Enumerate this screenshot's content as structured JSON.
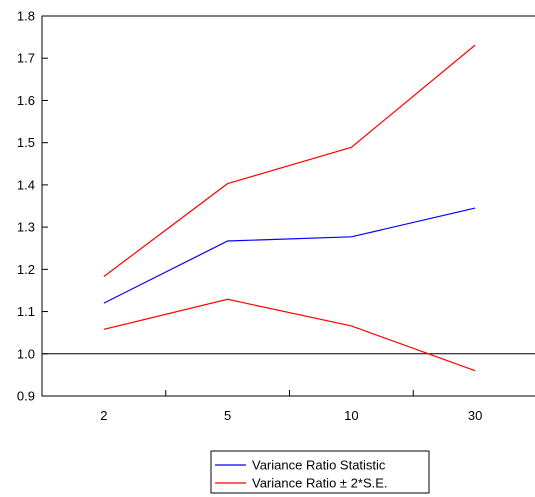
{
  "chart_data": {
    "type": "line",
    "categories": [
      "2",
      "5",
      "10",
      "30"
    ],
    "series": [
      {
        "name": "Variance Ratio Statistic",
        "color": "#0000ff",
        "values": [
          1.12,
          1.267,
          1.277,
          1.345
        ]
      },
      {
        "name": "Variance Ratio ± 2*S.E.",
        "color": "#ff0000",
        "values": [
          1.183,
          1.403,
          1.489,
          1.731
        ]
      },
      {
        "name": "",
        "color": "#ff0000",
        "values": [
          1.058,
          1.129,
          1.066,
          0.96
        ]
      }
    ],
    "reference_line": {
      "y": 1.0,
      "color": "#000000"
    },
    "ylim": [
      0.9,
      1.8
    ],
    "yticks": [
      "0.9",
      "1.0",
      "1.1",
      "1.2",
      "1.3",
      "1.4",
      "1.5",
      "1.6",
      "1.7",
      "1.8"
    ],
    "title": "",
    "xlabel": "",
    "ylabel": "",
    "grid": false,
    "legend": {
      "placement": "bottom-center",
      "entries": [
        {
          "label": "Variance Ratio Statistic",
          "color": "#0000ff"
        },
        {
          "label": "Variance Ratio ± 2*S.E.",
          "color": "#ff0000"
        }
      ]
    }
  }
}
